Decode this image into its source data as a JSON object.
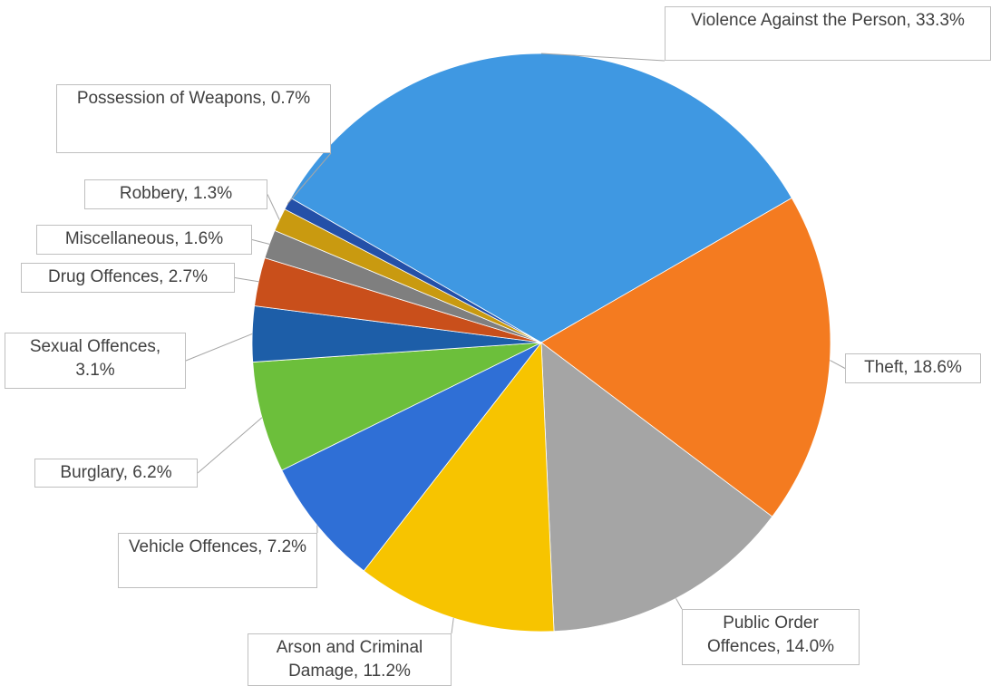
{
  "chart_data": {
    "type": "pie",
    "categories": [
      "Violence Against the Person",
      "Theft",
      "Public Order Offences",
      "Arson and Criminal Damage",
      "Vehicle Offences",
      "Burglary",
      "Sexual Offences",
      "Drug Offences",
      "Miscellaneous",
      "Robbery",
      "Possession of Weapons"
    ],
    "values": [
      33.3,
      18.6,
      14.0,
      11.2,
      7.2,
      6.2,
      3.1,
      2.7,
      1.6,
      1.3,
      0.7
    ],
    "value_labels": [
      "Violence Against the Person, 33.3%",
      "Theft, 18.6%",
      "Public Order Offences, 14.0%",
      "Arson and Criminal Damage, 11.2%",
      "Vehicle Offences, 7.2%",
      "Burglary, 6.2%",
      "Sexual Offences, 3.1%",
      "Drug Offences, 2.7%",
      "Miscellaneous, 1.6%",
      "Robbery, 1.3%",
      "Possession of Weapons, 0.7%"
    ],
    "colors": [
      "#3f98e2",
      "#f47b20",
      "#a5a5a5",
      "#f7c400",
      "#2f6fd6",
      "#6cbf3b",
      "#1d5ea8",
      "#c94f1b",
      "#7f7f7f",
      "#c99a10",
      "#2450a8"
    ]
  }
}
